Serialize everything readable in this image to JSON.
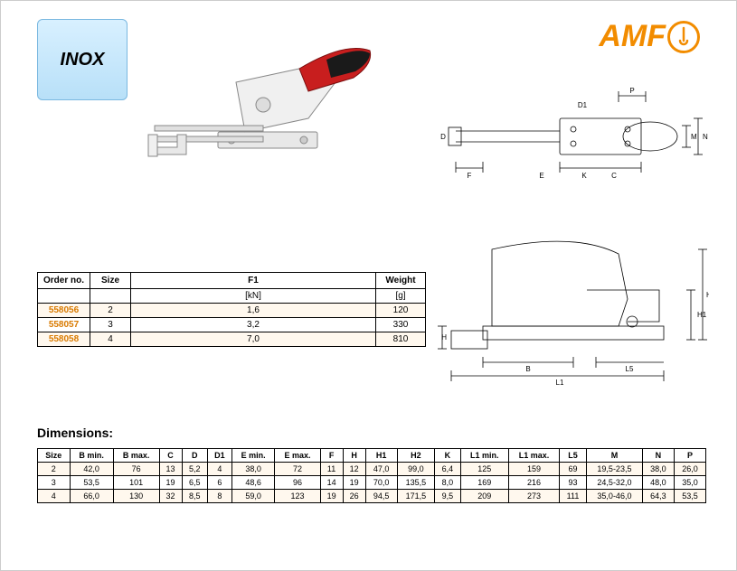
{
  "badge": {
    "label": "INOX"
  },
  "logo": {
    "text": "AMF"
  },
  "order_table": {
    "columns": [
      "Order no.",
      "Size",
      "F1",
      "Weight"
    ],
    "unit_row": [
      "",
      "",
      "[kN]",
      "[g]"
    ],
    "rows": [
      {
        "no": "558056",
        "size": "2",
        "f1": "1,6",
        "w": "120"
      },
      {
        "no": "558057",
        "size": "3",
        "f1": "3,2",
        "w": "330"
      },
      {
        "no": "558058",
        "size": "4",
        "f1": "7,0",
        "w": "810"
      }
    ]
  },
  "dims": {
    "title": "Dimensions:",
    "columns": [
      "Size",
      "B min.",
      "B max.",
      "C",
      "D",
      "D1",
      "E min.",
      "E max.",
      "F",
      "H",
      "H1",
      "H2",
      "K",
      "L1 min.",
      "L1 max.",
      "L5",
      "M",
      "N",
      "P"
    ],
    "rows": [
      [
        "2",
        "42,0",
        "76",
        "13",
        "5,2",
        "4",
        "38,0",
        "72",
        "11",
        "12",
        "47,0",
        "99,0",
        "6,4",
        "125",
        "159",
        "69",
        "19,5-23,5",
        "38,0",
        "26,0"
      ],
      [
        "3",
        "53,5",
        "101",
        "19",
        "6,5",
        "6",
        "48,6",
        "96",
        "14",
        "19",
        "70,0",
        "135,5",
        "8,0",
        "169",
        "216",
        "93",
        "24,5-32,0",
        "48,0",
        "35,0"
      ],
      [
        "4",
        "66,0",
        "130",
        "32",
        "8,5",
        "8",
        "59,0",
        "123",
        "19",
        "26",
        "94,5",
        "171,5",
        "9,5",
        "209",
        "273",
        "111",
        "35,0-46,0",
        "64,3",
        "53,5"
      ]
    ]
  },
  "diagram": {
    "labels_top": [
      "D1",
      "D",
      "F",
      "E",
      "K",
      "C",
      "P",
      "M",
      "N"
    ],
    "labels_bot": [
      "H",
      "B",
      "L1",
      "L5",
      "H1",
      "H2"
    ]
  },
  "colors": {
    "brand": "#f28c00",
    "link": "#d97a00",
    "alt_row": "#fff8ee",
    "badge_top": "#d8f0ff",
    "badge_bot": "#b8e0f8"
  }
}
